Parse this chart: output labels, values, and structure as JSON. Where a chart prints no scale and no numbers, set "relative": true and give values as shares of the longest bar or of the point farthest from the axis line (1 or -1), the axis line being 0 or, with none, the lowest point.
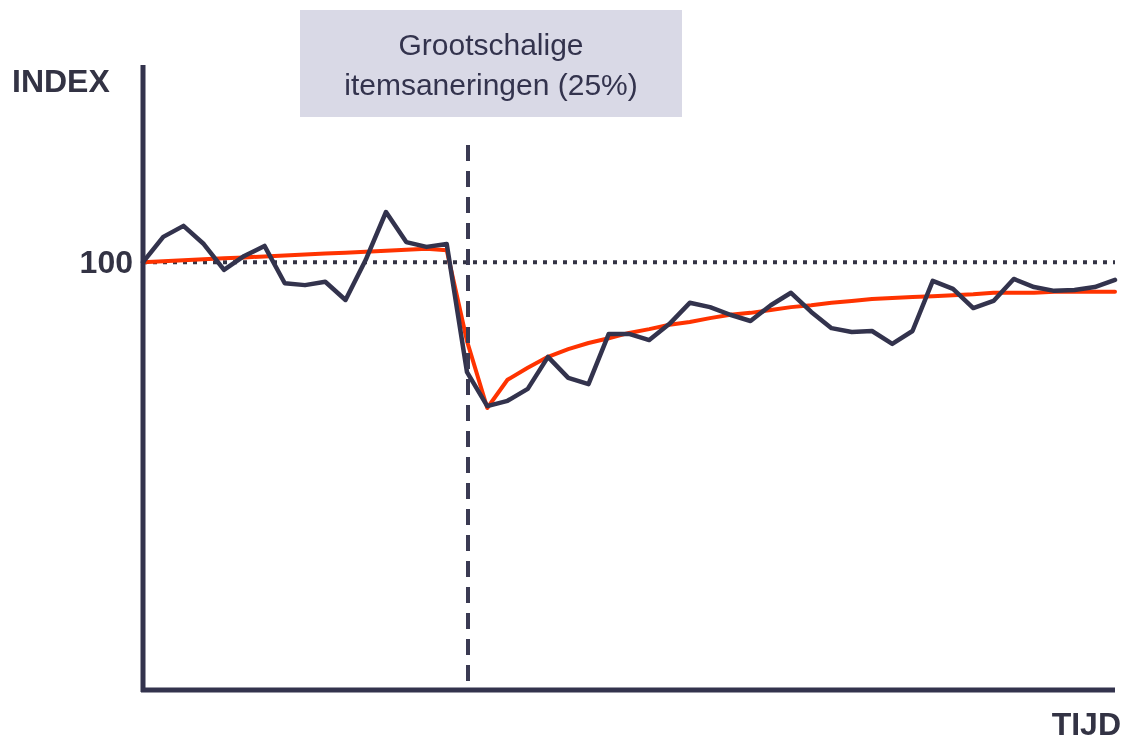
{
  "chart_data": {
    "type": "line",
    "relative": true,
    "xlabel": "TIJD",
    "ylabel": "INDEX",
    "categories": [
      null,
      null,
      null,
      null,
      null,
      null,
      null,
      null,
      null,
      null,
      null,
      null,
      null,
      null,
      null,
      null,
      null,
      null,
      null,
      null,
      null,
      null,
      null,
      null,
      null,
      null,
      null,
      null,
      null,
      null,
      null,
      null,
      null,
      null,
      null,
      null,
      null,
      null,
      null,
      null,
      null,
      null,
      null,
      null,
      null,
      null,
      null,
      null,
      null
    ],
    "annotations": [
      "Grootschalige itemsaneringen (25%)",
      "100"
    ],
    "ref_lines": [
      {
        "axis": "y",
        "value": 0.895,
        "color": "#333344",
        "line_style": "dotted"
      }
    ],
    "series": [
      {
        "color": "#ff3300",
        "values": [
          0.895,
          0.897,
          0.899,
          0.901,
          0.903,
          0.905,
          0.907,
          0.909,
          0.911,
          0.913,
          0.915,
          0.917,
          0.919,
          0.921,
          0.923,
          0.92,
          0.73,
          0.59,
          0.649,
          0.674,
          0.697,
          0.713,
          0.726,
          0.736,
          0.747,
          0.755,
          0.764,
          0.77,
          0.778,
          0.785,
          0.789,
          0.795,
          0.801,
          0.805,
          0.81,
          0.814,
          0.818,
          0.82,
          0.822,
          0.824,
          0.826,
          0.828,
          0.831,
          0.831,
          0.831,
          0.833,
          0.833,
          0.833,
          0.833
        ]
      },
      {
        "color": "#33334d",
        "values": [
          0.895,
          0.948,
          0.971,
          0.933,
          0.879,
          0.908,
          0.929,
          0.851,
          0.847,
          0.854,
          0.816,
          0.9,
          1,
          0.937,
          0.927,
          0.933,
          0.665,
          0.594,
          0.605,
          0.63,
          0.697,
          0.653,
          0.64,
          0.745,
          0.745,
          0.732,
          0.766,
          0.81,
          0.801,
          0.785,
          0.772,
          0.805,
          0.831,
          0.791,
          0.757,
          0.749,
          0.751,
          0.724,
          0.751,
          0.856,
          0.839,
          0.799,
          0.814,
          0.86,
          0.843,
          0.835,
          0.837,
          0.843,
          0.858
        ]
      }
    ]
  }
}
